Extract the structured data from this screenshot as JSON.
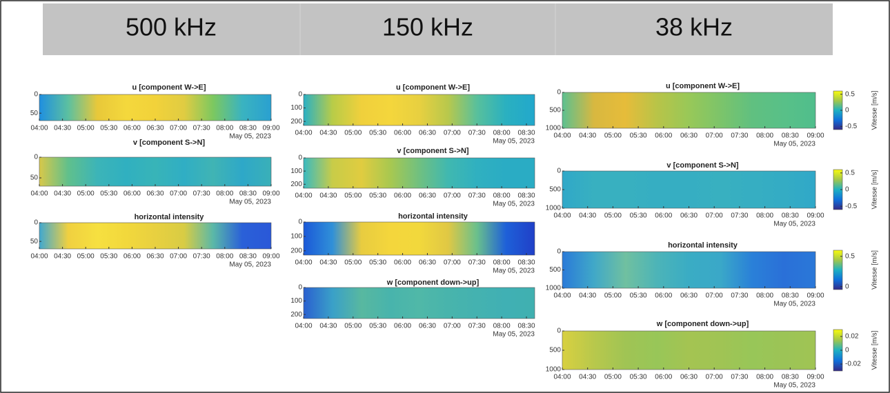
{
  "headers": [
    "500 kHz",
    "150 kHz",
    "38 kHz"
  ],
  "chart_data": [
    {
      "type": "heatmap",
      "title": "u [component W->E]",
      "xlim": [
        "04:00",
        "09:00"
      ],
      "xticks": [
        "04:00",
        "04:30",
        "05:00",
        "05:30",
        "06:00",
        "06:30",
        "07:00",
        "07:30",
        "08:00",
        "08:30",
        "09:00"
      ],
      "xlabel": "May 05, 2023",
      "ylim": [
        0,
        70
      ],
      "yticks": [
        0,
        50
      ]
    },
    {
      "type": "heatmap",
      "title": "v [component S->N]",
      "xlim": [
        "04:00",
        "09:00"
      ],
      "xticks": [
        "04:00",
        "04:30",
        "05:00",
        "05:30",
        "06:00",
        "06:30",
        "07:00",
        "07:30",
        "08:00",
        "08:30",
        "09:00"
      ],
      "xlabel": "May 05, 2023",
      "ylim": [
        0,
        70
      ],
      "yticks": [
        0,
        50
      ]
    },
    {
      "type": "heatmap",
      "title": "horizontal intensity",
      "xlim": [
        "04:00",
        "09:00"
      ],
      "xticks": [
        "04:00",
        "04:30",
        "05:00",
        "05:30",
        "06:00",
        "06:30",
        "07:00",
        "07:30",
        "08:00",
        "08:30",
        "09:00"
      ],
      "xlabel": "May 05, 2023",
      "ylim": [
        0,
        70
      ],
      "yticks": [
        0,
        50
      ]
    },
    {
      "type": "heatmap",
      "title": "u [component W->E]",
      "xlim": [
        "04:00",
        "08:40"
      ],
      "xticks": [
        "04:00",
        "04:30",
        "05:00",
        "05:30",
        "06:00",
        "06:30",
        "07:00",
        "07:30",
        "08:00",
        "08:30"
      ],
      "xlabel": "May 05, 2023",
      "ylim": [
        0,
        230
      ],
      "yticks": [
        0,
        100,
        200
      ]
    },
    {
      "type": "heatmap",
      "title": "v [component S->N]",
      "xlim": [
        "04:00",
        "08:40"
      ],
      "xticks": [
        "04:00",
        "04:30",
        "05:00",
        "05:30",
        "06:00",
        "06:30",
        "07:00",
        "07:30",
        "08:00",
        "08:30"
      ],
      "xlabel": "May 05, 2023",
      "ylim": [
        0,
        230
      ],
      "yticks": [
        0,
        100,
        200
      ]
    },
    {
      "type": "heatmap",
      "title": "horizontal intensity",
      "xlim": [
        "04:00",
        "08:40"
      ],
      "xticks": [
        "04:00",
        "04:30",
        "05:00",
        "05:30",
        "06:00",
        "06:30",
        "07:00",
        "07:30",
        "08:00",
        "08:30"
      ],
      "xlabel": "May 05, 2023",
      "ylim": [
        0,
        230
      ],
      "yticks": [
        0,
        100,
        200
      ]
    },
    {
      "type": "heatmap",
      "title": "w [component down->up]",
      "xlim": [
        "04:00",
        "08:40"
      ],
      "xticks": [
        "04:00",
        "04:30",
        "05:00",
        "05:30",
        "06:00",
        "06:30",
        "07:00",
        "07:30",
        "08:00",
        "08:30"
      ],
      "xlabel": "May 05, 2023",
      "ylim": [
        0,
        230
      ],
      "yticks": [
        0,
        100,
        200
      ]
    },
    {
      "type": "heatmap",
      "title": "u [component W->E]",
      "xlim": [
        "04:00",
        "09:00"
      ],
      "xticks": [
        "04:00",
        "04:30",
        "05:00",
        "05:30",
        "06:00",
        "06:30",
        "07:00",
        "07:30",
        "08:00",
        "08:30",
        "09:00"
      ],
      "xlabel": "May 05, 2023",
      "ylim": [
        0,
        1000
      ],
      "yticks": [
        0,
        500,
        1000
      ],
      "colorbar": {
        "label": "Vitesse [m/s]",
        "lim": [
          -0.6,
          0.6
        ],
        "ticks": [
          -0.5,
          0,
          0.5
        ]
      }
    },
    {
      "type": "heatmap",
      "title": "v [component S->N]",
      "xlim": [
        "04:00",
        "09:00"
      ],
      "xticks": [
        "04:00",
        "04:30",
        "05:00",
        "05:30",
        "06:00",
        "06:30",
        "07:00",
        "07:30",
        "08:00",
        "08:30",
        "09:00"
      ],
      "xlabel": "May 05, 2023",
      "ylim": [
        0,
        1000
      ],
      "yticks": [
        0,
        500,
        1000
      ],
      "colorbar": {
        "label": "Vitesse [m/s]",
        "lim": [
          -0.6,
          0.6
        ],
        "ticks": [
          -0.5,
          0,
          0.5
        ]
      }
    },
    {
      "type": "heatmap",
      "title": "horizontal intensity",
      "xlim": [
        "04:00",
        "09:00"
      ],
      "xticks": [
        "04:00",
        "04:30",
        "05:00",
        "05:30",
        "06:00",
        "06:30",
        "07:00",
        "07:30",
        "08:00",
        "08:30",
        "09:00"
      ],
      "xlabel": "May 05, 2023",
      "ylim": [
        0,
        1000
      ],
      "yticks": [
        0,
        500,
        1000
      ],
      "colorbar": {
        "label": "Vitesse [m/s]",
        "lim": [
          -0.05,
          0.6
        ],
        "ticks": [
          0,
          0.5
        ]
      }
    },
    {
      "type": "heatmap",
      "title": "w [component down->up]",
      "xlim": [
        "04:00",
        "09:00"
      ],
      "xticks": [
        "04:00",
        "04:30",
        "05:00",
        "05:30",
        "06:00",
        "06:30",
        "07:00",
        "07:30",
        "08:00",
        "08:30",
        "09:00"
      ],
      "xlabel": "May 05, 2023",
      "ylim": [
        0,
        1000
      ],
      "yticks": [
        0,
        500,
        1000
      ],
      "colorbar": {
        "label": "Vitesse [m/s]",
        "lim": [
          -0.03,
          0.03
        ],
        "ticks": [
          -0.02,
          0,
          0.02
        ]
      }
    }
  ]
}
